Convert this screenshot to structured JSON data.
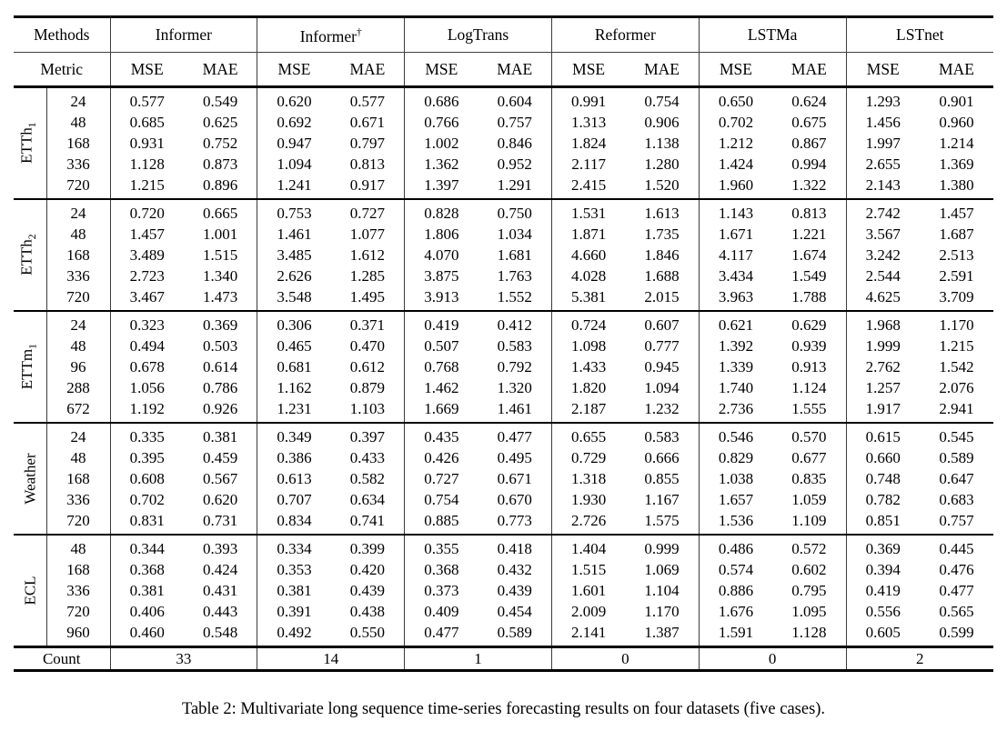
{
  "page": {
    "background": "#ffffff",
    "text_color": "#000000"
  },
  "table": {
    "header": {
      "methods_label": "Methods",
      "metric_label": "Metric",
      "groups": [
        {
          "name": "Informer",
          "sup": ""
        },
        {
          "name": "Informer",
          "sup": "†"
        },
        {
          "name": "LogTrans",
          "sup": ""
        },
        {
          "name": "Reformer",
          "sup": ""
        },
        {
          "name": "LSTMa",
          "sup": ""
        },
        {
          "name": "LSTnet",
          "sup": ""
        }
      ],
      "metrics": [
        "MSE",
        "MAE"
      ]
    },
    "blocks": [
      {
        "dataset": "ETTh",
        "sub": "1",
        "rows": [
          {
            "horizon": "24",
            "values": [
              "0.577",
              "0.549",
              "0.620",
              "0.577",
              "0.686",
              "0.604",
              "0.991",
              "0.754",
              "0.650",
              "0.624",
              "1.293",
              "0.901"
            ],
            "bold": [
              0,
              1
            ]
          },
          {
            "horizon": "48",
            "values": [
              "0.685",
              "0.625",
              "0.692",
              "0.671",
              "0.766",
              "0.757",
              "1.313",
              "0.906",
              "0.702",
              "0.675",
              "1.456",
              "0.960"
            ],
            "bold": [
              0,
              1
            ]
          },
          {
            "horizon": "168",
            "values": [
              "0.931",
              "0.752",
              "0.947",
              "0.797",
              "1.002",
              "0.846",
              "1.824",
              "1.138",
              "1.212",
              "0.867",
              "1.997",
              "1.214"
            ],
            "bold": [
              0,
              1
            ]
          },
          {
            "horizon": "336",
            "values": [
              "1.128",
              "0.873",
              "1.094",
              "0.813",
              "1.362",
              "0.952",
              "2.117",
              "1.280",
              "1.424",
              "0.994",
              "2.655",
              "1.369"
            ],
            "bold": [
              2,
              3
            ]
          },
          {
            "horizon": "720",
            "values": [
              "1.215",
              "0.896",
              "1.241",
              "0.917",
              "1.397",
              "1.291",
              "2.415",
              "1.520",
              "1.960",
              "1.322",
              "2.143",
              "1.380"
            ],
            "bold": [
              0,
              1
            ]
          }
        ]
      },
      {
        "dataset": "ETTh",
        "sub": "2",
        "rows": [
          {
            "horizon": "24",
            "values": [
              "0.720",
              "0.665",
              "0.753",
              "0.727",
              "0.828",
              "0.750",
              "1.531",
              "1.613",
              "1.143",
              "0.813",
              "2.742",
              "1.457"
            ],
            "bold": [
              0,
              1
            ]
          },
          {
            "horizon": "48",
            "values": [
              "1.457",
              "1.001",
              "1.461",
              "1.077",
              "1.806",
              "1.034",
              "1.871",
              "1.735",
              "1.671",
              "1.221",
              "3.567",
              "1.687"
            ],
            "bold": [
              0,
              1
            ]
          },
          {
            "horizon": "168",
            "values": [
              "3.489",
              "1.515",
              "3.485",
              "1.612",
              "4.070",
              "1.681",
              "4.660",
              "1.846",
              "4.117",
              "1.674",
              "3.242",
              "2.513"
            ],
            "bold": [
              1,
              10
            ]
          },
          {
            "horizon": "336",
            "values": [
              "2.723",
              "1.340",
              "2.626",
              "1.285",
              "3.875",
              "1.763",
              "4.028",
              "1.688",
              "3.434",
              "1.549",
              "2.544",
              "2.591"
            ],
            "bold": [
              3,
              10
            ]
          },
          {
            "horizon": "720",
            "values": [
              "3.467",
              "1.473",
              "3.548",
              "1.495",
              "3.913",
              "1.552",
              "5.381",
              "2.015",
              "3.963",
              "1.788",
              "4.625",
              "3.709"
            ],
            "bold": [
              0,
              1
            ]
          }
        ]
      },
      {
        "dataset": "ETTm",
        "sub": "1",
        "rows": [
          {
            "horizon": "24",
            "values": [
              "0.323",
              "0.369",
              "0.306",
              "0.371",
              "0.419",
              "0.412",
              "0.724",
              "0.607",
              "0.621",
              "0.629",
              "1.968",
              "1.170"
            ],
            "bold": [
              1,
              2
            ]
          },
          {
            "horizon": "48",
            "values": [
              "0.494",
              "0.503",
              "0.465",
              "0.470",
              "0.507",
              "0.583",
              "1.098",
              "0.777",
              "1.392",
              "0.939",
              "1.999",
              "1.215"
            ],
            "bold": [
              2,
              3
            ]
          },
          {
            "horizon": "96",
            "values": [
              "0.678",
              "0.614",
              "0.681",
              "0.612",
              "0.768",
              "0.792",
              "1.433",
              "0.945",
              "1.339",
              "0.913",
              "2.762",
              "1.542"
            ],
            "bold": [
              0,
              3
            ]
          },
          {
            "horizon": "288",
            "values": [
              "1.056",
              "0.786",
              "1.162",
              "0.879",
              "1.462",
              "1.320",
              "1.820",
              "1.094",
              "1.740",
              "1.124",
              "1.257",
              "2.076"
            ],
            "bold": [
              0,
              1
            ]
          },
          {
            "horizon": "672",
            "values": [
              "1.192",
              "0.926",
              "1.231",
              "1.103",
              "1.669",
              "1.461",
              "2.187",
              "1.232",
              "2.736",
              "1.555",
              "1.917",
              "2.941"
            ],
            "bold": [
              0,
              1
            ]
          }
        ]
      },
      {
        "dataset": "Weather",
        "sub": "",
        "rows": [
          {
            "horizon": "24",
            "values": [
              "0.335",
              "0.381",
              "0.349",
              "0.397",
              "0.435",
              "0.477",
              "0.655",
              "0.583",
              "0.546",
              "0.570",
              "0.615",
              "0.545"
            ],
            "bold": [
              0,
              1
            ]
          },
          {
            "horizon": "48",
            "values": [
              "0.395",
              "0.459",
              "0.386",
              "0.433",
              "0.426",
              "0.495",
              "0.729",
              "0.666",
              "0.829",
              "0.677",
              "0.660",
              "0.589"
            ],
            "bold": [
              2,
              3
            ]
          },
          {
            "horizon": "168",
            "values": [
              "0.608",
              "0.567",
              "0.613",
              "0.582",
              "0.727",
              "0.671",
              "1.318",
              "0.855",
              "1.038",
              "0.835",
              "0.748",
              "0.647"
            ],
            "bold": [
              0,
              1
            ]
          },
          {
            "horizon": "336",
            "values": [
              "0.702",
              "0.620",
              "0.707",
              "0.634",
              "0.754",
              "0.670",
              "1.930",
              "1.167",
              "1.657",
              "1.059",
              "0.782",
              "0.683"
            ],
            "bold": [
              0,
              1
            ]
          },
          {
            "horizon": "720",
            "values": [
              "0.831",
              "0.731",
              "0.834",
              "0.741",
              "0.885",
              "0.773",
              "2.726",
              "1.575",
              "1.536",
              "1.109",
              "0.851",
              "0.757"
            ],
            "bold": [
              0,
              1
            ]
          }
        ]
      },
      {
        "dataset": "ECL",
        "sub": "",
        "rows": [
          {
            "horizon": "48",
            "values": [
              "0.344",
              "0.393",
              "0.334",
              "0.399",
              "0.355",
              "0.418",
              "1.404",
              "0.999",
              "0.486",
              "0.572",
              "0.369",
              "0.445"
            ],
            "bold": [
              1,
              2
            ]
          },
          {
            "horizon": "168",
            "values": [
              "0.368",
              "0.424",
              "0.353",
              "0.420",
              "0.368",
              "0.432",
              "1.515",
              "1.069",
              "0.574",
              "0.602",
              "0.394",
              "0.476"
            ],
            "bold": [
              2,
              3
            ]
          },
          {
            "horizon": "336",
            "values": [
              "0.381",
              "0.431",
              "0.381",
              "0.439",
              "0.373",
              "0.439",
              "1.601",
              "1.104",
              "0.886",
              "0.795",
              "0.419",
              "0.477"
            ],
            "bold": [
              1,
              4
            ]
          },
          {
            "horizon": "720",
            "values": [
              "0.406",
              "0.443",
              "0.391",
              "0.438",
              "0.409",
              "0.454",
              "2.009",
              "1.170",
              "1.676",
              "1.095",
              "0.556",
              "0.565"
            ],
            "bold": [
              2,
              3
            ]
          },
          {
            "horizon": "960",
            "values": [
              "0.460",
              "0.548",
              "0.492",
              "0.550",
              "0.477",
              "0.589",
              "2.141",
              "1.387",
              "1.591",
              "1.128",
              "0.605",
              "0.599"
            ],
            "bold": [
              0,
              1
            ]
          }
        ]
      }
    ],
    "count_row": {
      "label": "Count",
      "values": [
        "33",
        "14",
        "1",
        "0",
        "0",
        "2"
      ]
    }
  },
  "caption": "Table 2: Multivariate long sequence time-series forecasting results on four datasets (five cases)."
}
